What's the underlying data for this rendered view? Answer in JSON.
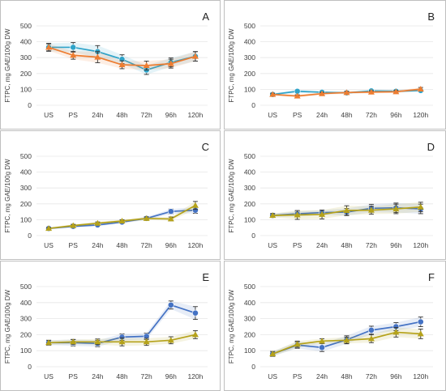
{
  "chart_data": [
    {
      "type": "line",
      "panel_label": "A",
      "ylabel": "FTPC, mg GAE/100g DW",
      "ylim": [
        0,
        500
      ],
      "yticks": [
        0,
        100,
        200,
        300,
        400,
        500
      ],
      "categories": [
        "US",
        "PS",
        "24h",
        "48h",
        "72h",
        "96h",
        "120h"
      ],
      "grid": true,
      "series": [
        {
          "marker": "circle",
          "color": "#2ea3c9",
          "values": [
            365,
            365,
            338,
            290,
            222,
            270,
            308
          ],
          "errors": [
            25,
            30,
            38,
            28,
            28,
            28,
            30
          ]
        },
        {
          "marker": "triangle",
          "color": "#ed7d31",
          "values": [
            365,
            315,
            303,
            255,
            250,
            262,
            308
          ],
          "errors": [
            22,
            25,
            35,
            25,
            28,
            28,
            30
          ]
        }
      ]
    },
    {
      "type": "line",
      "panel_label": "B",
      "ylabel": "FTPC, mg GAE/100g DW",
      "ylim": [
        0,
        500
      ],
      "yticks": [
        0,
        100,
        200,
        300,
        400,
        500
      ],
      "categories": [
        "US",
        "PS",
        "24h",
        "48h",
        "72h",
        "96h",
        "120h"
      ],
      "grid": true,
      "series": [
        {
          "marker": "circle",
          "color": "#2ea3c9",
          "values": [
            68,
            88,
            82,
            78,
            90,
            88,
            93
          ],
          "errors": [
            8,
            10,
            8,
            8,
            8,
            8,
            8
          ]
        },
        {
          "marker": "triangle",
          "color": "#ed7d31",
          "values": [
            68,
            58,
            73,
            80,
            83,
            85,
            102
          ],
          "errors": [
            8,
            8,
            8,
            8,
            8,
            8,
            10
          ]
        }
      ]
    },
    {
      "type": "line",
      "panel_label": "C",
      "ylabel": "FTPC, mg GAE/100g DW",
      "ylim": [
        0,
        500
      ],
      "yticks": [
        0,
        100,
        200,
        300,
        400,
        500
      ],
      "categories": [
        "US",
        "PS",
        "24h",
        "48h",
        "72h",
        "96h",
        "120h"
      ],
      "grid": true,
      "series": [
        {
          "marker": "circle",
          "color": "#4472c4",
          "values": [
            45,
            58,
            67,
            85,
            108,
            152,
            160
          ],
          "errors": [
            6,
            8,
            8,
            8,
            10,
            15,
            20
          ]
        },
        {
          "marker": "triangle",
          "color": "#b5a21a",
          "values": [
            45,
            63,
            78,
            92,
            108,
            105,
            190
          ],
          "errors": [
            6,
            8,
            8,
            8,
            10,
            12,
            25
          ]
        }
      ]
    },
    {
      "type": "line",
      "panel_label": "D",
      "ylabel": "FTPC, mg GAE/100g DW",
      "ylim": [
        0,
        500
      ],
      "yticks": [
        0,
        100,
        200,
        300,
        400,
        500
      ],
      "categories": [
        "US",
        "PS",
        "24h",
        "48h",
        "72h",
        "96h",
        "120h"
      ],
      "grid": true,
      "series": [
        {
          "marker": "circle",
          "color": "#4472c4",
          "values": [
            127,
            137,
            145,
            148,
            172,
            175,
            168
          ],
          "errors": [
            12,
            15,
            15,
            22,
            25,
            30,
            30
          ]
        },
        {
          "marker": "triangle",
          "color": "#b5a21a",
          "values": [
            127,
            130,
            133,
            158,
            160,
            168,
            180
          ],
          "errors": [
            12,
            28,
            28,
            30,
            25,
            30,
            30
          ]
        }
      ]
    },
    {
      "type": "line",
      "panel_label": "E",
      "ylabel": "FTPC, mg GAE/100g DW",
      "ylim": [
        0,
        500
      ],
      "yticks": [
        0,
        100,
        200,
        300,
        400,
        500
      ],
      "categories": [
        "US",
        "PS",
        "24h",
        "48h",
        "72h",
        "96h",
        "120h"
      ],
      "grid": true,
      "series": [
        {
          "marker": "circle",
          "color": "#4472c4",
          "values": [
            150,
            150,
            145,
            185,
            190,
            385,
            335
          ],
          "errors": [
            15,
            20,
            20,
            20,
            20,
            25,
            40
          ]
        },
        {
          "marker": "triangle",
          "color": "#b5a21a",
          "values": [
            150,
            155,
            155,
            155,
            155,
            165,
            200
          ],
          "errors": [
            15,
            15,
            18,
            25,
            22,
            22,
            25
          ]
        }
      ]
    },
    {
      "type": "line",
      "panel_label": "F",
      "ylabel": "FTPC, mg GAE/100g DW",
      "ylim": [
        0,
        500
      ],
      "yticks": [
        0,
        100,
        200,
        300,
        400,
        500
      ],
      "categories": [
        "US",
        "PS",
        "24h",
        "48h",
        "72h",
        "96h",
        "120h"
      ],
      "grid": true,
      "series": [
        {
          "marker": "circle",
          "color": "#4472c4",
          "values": [
            80,
            135,
            120,
            168,
            228,
            250,
            280
          ],
          "errors": [
            15,
            20,
            25,
            25,
            25,
            25,
            30
          ]
        },
        {
          "marker": "triangle",
          "color": "#b5a21a",
          "values": [
            80,
            140,
            160,
            165,
            175,
            215,
            205
          ],
          "errors": [
            15,
            20,
            15,
            20,
            25,
            30,
            30
          ]
        }
      ]
    }
  ]
}
